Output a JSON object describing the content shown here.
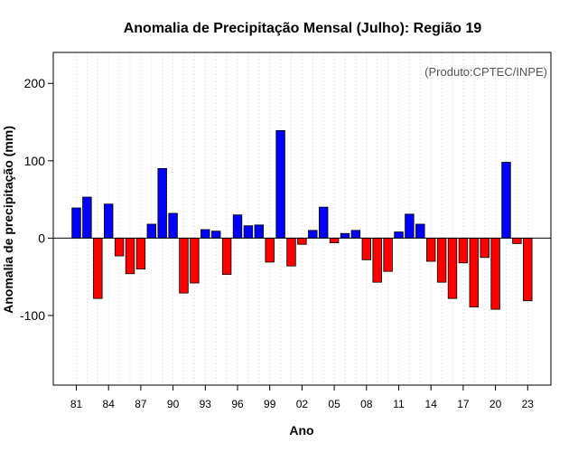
{
  "chart_data": {
    "type": "bar",
    "title": "Anomalia de Precipitação Mensal (Julho): Região 19",
    "xlabel": "Ano",
    "ylabel": "Anomalia de precipitação (mm)",
    "credit": "(Produto:CPTEC/INPE)",
    "ylim": [
      -190,
      240
    ],
    "yticks": [
      -100,
      0,
      100,
      200
    ],
    "xtick_labels": [
      "81",
      "84",
      "87",
      "90",
      "93",
      "96",
      "99",
      "02",
      "05",
      "08",
      "11",
      "14",
      "17",
      "20",
      "23"
    ],
    "xtick_every": 3,
    "grid": "vertical dotted",
    "categories": [
      "1981",
      "1982",
      "1983",
      "1984",
      "1985",
      "1986",
      "1987",
      "1988",
      "1989",
      "1990",
      "1991",
      "1992",
      "1993",
      "1994",
      "1995",
      "1996",
      "1997",
      "1998",
      "1999",
      "2000",
      "2001",
      "2002",
      "2003",
      "2004",
      "2005",
      "2006",
      "2007",
      "2008",
      "2009",
      "2010",
      "2011",
      "2012",
      "2013",
      "2014",
      "2015",
      "2016",
      "2017",
      "2018",
      "2019",
      "2020",
      "2021",
      "2022",
      "2023"
    ],
    "values": [
      39,
      53,
      -78,
      44,
      -23,
      -46,
      -40,
      18,
      90,
      32,
      -71,
      -58,
      11,
      9,
      -47,
      30,
      16,
      17,
      -31,
      139,
      -36,
      -8,
      10,
      40,
      -6,
      6,
      10,
      -28,
      -57,
      -43,
      8,
      31,
      18,
      -30,
      -57,
      -78,
      -32,
      -89,
      -25,
      -92,
      98,
      -7,
      -81
    ],
    "positive_color": "#0000ff",
    "negative_color": "#ff0000"
  }
}
